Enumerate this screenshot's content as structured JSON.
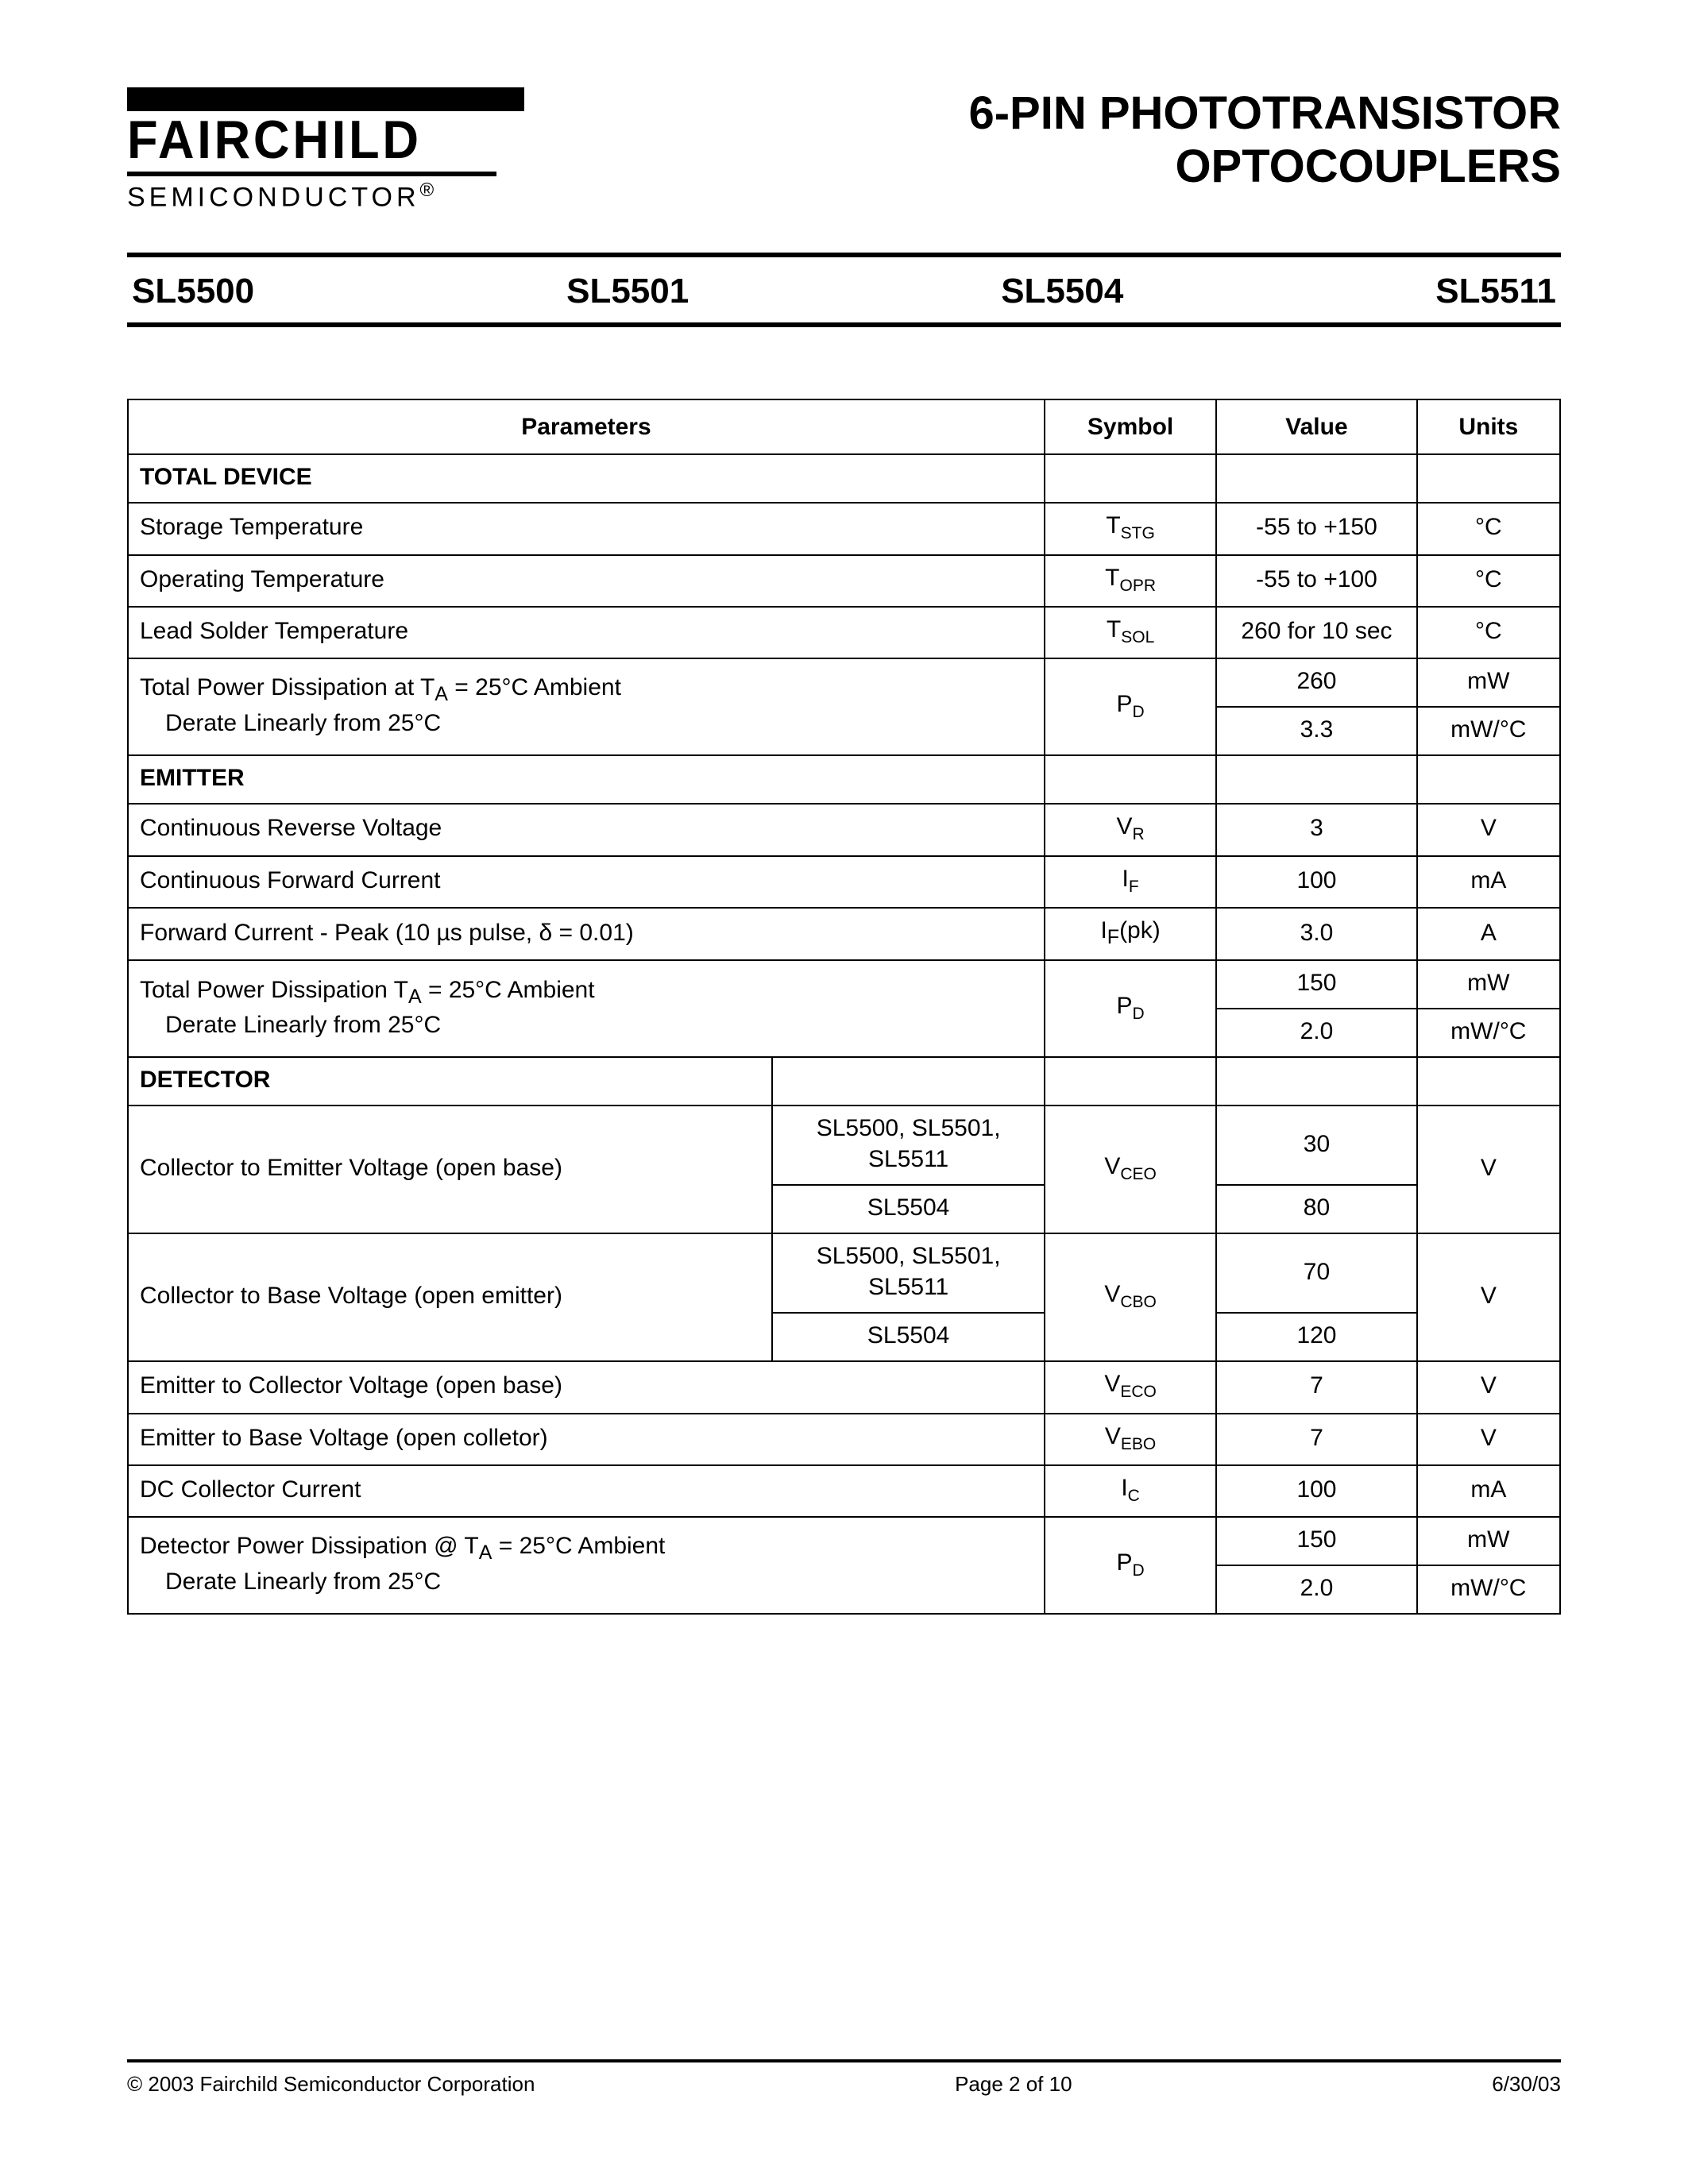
{
  "logo": {
    "name": "FAIRCHILD",
    "sub": "SEMICONDUCTOR",
    "reg": "®"
  },
  "title": {
    "line1": "6-PIN PHOTOTRANSISTOR",
    "line2": "OPTOCOUPLERS"
  },
  "models": [
    "SL5500",
    "SL5501",
    "SL5504",
    "SL5511"
  ],
  "table": {
    "headers": {
      "parameters": "Parameters",
      "symbol": "Symbol",
      "value": "Value",
      "units": "Units"
    },
    "sections": {
      "total_device": "TOTAL DEVICE",
      "emitter": "EMITTER",
      "detector": "DETECTOR"
    },
    "rows": {
      "storage_temp": {
        "param": "Storage Temperature",
        "sym_base": "T",
        "sym_sub": "STG",
        "val": "-55 to +150",
        "unit": "°C"
      },
      "oper_temp": {
        "param": "Operating Temperature",
        "sym_base": "T",
        "sym_sub": "OPR",
        "val": "-55 to +100",
        "unit": "°C"
      },
      "lead_solder": {
        "param": "Lead Solder Temperature",
        "sym_base": "T",
        "sym_sub": "SOL",
        "val": "260 for 10 sec",
        "unit": "°C"
      },
      "tot_pd_1": {
        "param_html": "Total Power Dissipation at T<sub>A</sub> = 25°C Ambient",
        "sym_base": "P",
        "sym_sub": "D",
        "val": "260",
        "unit": "mW"
      },
      "tot_pd_2": {
        "param": "Derate Linearly from 25°C",
        "val": "3.3",
        "unit": "mW/°C"
      },
      "cont_rev_v": {
        "param": "Continuous Reverse Voltage",
        "sym_base": "V",
        "sym_sub": "R",
        "val": "3",
        "unit": "V"
      },
      "cont_fwd_i": {
        "param": "Continuous Forward Current",
        "sym_base": "I",
        "sym_sub": "F",
        "val": "100",
        "unit": "mA"
      },
      "fwd_peak": {
        "param": "Forward Current - Peak (10 µs pulse, δ = 0.01)",
        "sym_html": "I<sub>F</sub>(pk)",
        "val": "3.0",
        "unit": "A"
      },
      "em_pd_1": {
        "param_html": "Total Power Dissipation T<sub>A</sub> = 25°C Ambient",
        "sym_base": "P",
        "sym_sub": "D",
        "val": "150",
        "unit": "mW"
      },
      "em_pd_2": {
        "param": "Derate Linearly from 25°C",
        "val": "2.0",
        "unit": "mW/°C"
      },
      "vceo": {
        "param": "Collector to Emitter Voltage (open base)",
        "dev1": "SL5500, SL5501, SL5511",
        "dev2": "SL5504",
        "sym_base": "V",
        "sym_sub": "CEO",
        "val1": "30",
        "val2": "80",
        "unit": "V"
      },
      "vcbo": {
        "param": "Collector to Base Voltage (open emitter)",
        "dev1": "SL5500, SL5501, SL5511",
        "dev2": "SL5504",
        "sym_base": "V",
        "sym_sub": "CBO",
        "val1": "70",
        "val2": "120",
        "unit": "V"
      },
      "veco": {
        "param": "Emitter to Collector Voltage (open base)",
        "sym_base": "V",
        "sym_sub": "ECO",
        "val": "7",
        "unit": "V"
      },
      "vebo": {
        "param": "Emitter to Base Voltage (open colletor)",
        "sym_base": "V",
        "sym_sub": "EBO",
        "val": "7",
        "unit": "V"
      },
      "ic": {
        "param": "DC Collector Current",
        "sym_base": "I",
        "sym_sub": "C",
        "val": "100",
        "unit": "mA"
      },
      "det_pd_1": {
        "param_html": "Detector Power Dissipation @ T<sub>A</sub> = 25°C Ambient",
        "sym_base": "P",
        "sym_sub": "D",
        "val": "150",
        "unit": "mW"
      },
      "det_pd_2": {
        "param": "Derate Linearly from 25°C",
        "val": "2.0",
        "unit": "mW/°C"
      }
    }
  },
  "footer": {
    "copyright": "© 2003 Fairchild Semiconductor Corporation",
    "page": "Page 2 of 10",
    "date": "6/30/03"
  }
}
